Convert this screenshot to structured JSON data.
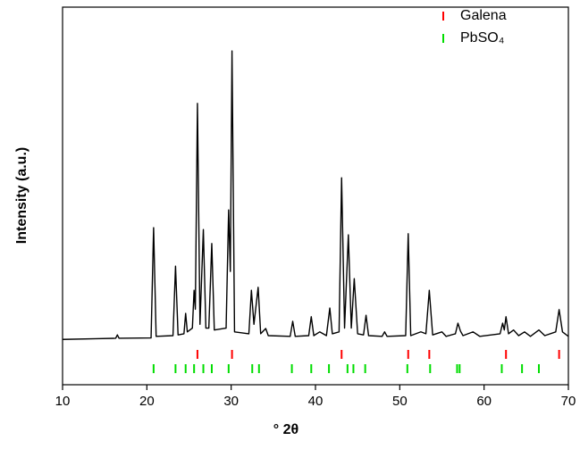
{
  "chart_data": {
    "type": "line",
    "x_label": "° 2θ",
    "y_label": "Intensity (a.u.)",
    "xlim": [
      10,
      70
    ],
    "xticks": [
      10,
      20,
      30,
      40,
      50,
      60,
      70
    ],
    "ylim": [
      0,
      100
    ],
    "legend": "upper-right",
    "series": [
      {
        "color": "#000000",
        "x": [
          10,
          14,
          16.3,
          16.5,
          16.7,
          20.5,
          20.8,
          21.1,
          23.1,
          23.4,
          23.7,
          24.4,
          24.6,
          24.8,
          25.4,
          25.6,
          25.75,
          26.0,
          26.3,
          26.7,
          27.0,
          27.35,
          27.7,
          28.0,
          29.4,
          29.7,
          29.9,
          30.1,
          30.4,
          32.1,
          32.4,
          32.7,
          33.2,
          33.5,
          34.1,
          34.4,
          37.0,
          37.3,
          37.6,
          39.2,
          39.5,
          39.8,
          40.5,
          41.3,
          41.7,
          42.0,
          42.8,
          43.1,
          43.45,
          43.9,
          44.25,
          44.6,
          45.0,
          45.7,
          46.0,
          46.3,
          47.9,
          48.2,
          48.5,
          50.7,
          51.0,
          51.3,
          52.5,
          53.1,
          53.5,
          53.9,
          55.0,
          55.5,
          56.6,
          56.9,
          57.2,
          57.5,
          58.7,
          59.5,
          61.9,
          62.2,
          62.4,
          62.6,
          62.9,
          63.5,
          64.1,
          64.8,
          65.5,
          66.5,
          67.2,
          68.5,
          68.9,
          69.3,
          70
        ],
        "values": [
          12.0,
          12.2,
          12.3,
          13.2,
          12.3,
          12.4,
          41.6,
          12.8,
          13,
          31.4,
          13.2,
          13.5,
          18.9,
          14,
          15,
          25,
          20,
          74.5,
          16,
          41.1,
          15,
          15,
          37.4,
          14.5,
          15,
          46.3,
          30,
          88.4,
          14,
          13.5,
          25,
          16,
          25.8,
          13.5,
          14.9,
          13,
          12.8,
          16.8,
          12.8,
          13,
          18,
          13,
          14,
          13,
          20.3,
          13.5,
          14,
          54.8,
          15,
          39.7,
          15,
          28.1,
          13.5,
          13.2,
          18.4,
          13,
          12.8,
          14,
          12.8,
          13,
          40,
          13,
          14,
          13.5,
          25,
          13.2,
          14,
          12.8,
          13.5,
          16.3,
          14.2,
          13,
          14,
          12.8,
          13.5,
          16.3,
          14.5,
          18,
          13.5,
          14.5,
          13,
          14,
          12.8,
          14.5,
          13,
          14,
          19.9,
          14,
          12.8
        ]
      }
    ],
    "reference_series": [
      {
        "name": "Galena",
        "color": "#ff0000",
        "x": [
          26.0,
          30.1,
          43.1,
          51.0,
          53.5,
          62.6,
          68.9
        ]
      },
      {
        "name": "PbSO₄",
        "color": "#00dd00",
        "x": [
          20.8,
          23.4,
          24.6,
          25.6,
          26.7,
          27.7,
          29.7,
          32.5,
          33.3,
          37.2,
          39.5,
          41.6,
          43.8,
          44.5,
          45.9,
          50.9,
          53.6,
          56.8,
          57.1,
          62.1,
          64.5,
          66.5
        ]
      }
    ]
  }
}
